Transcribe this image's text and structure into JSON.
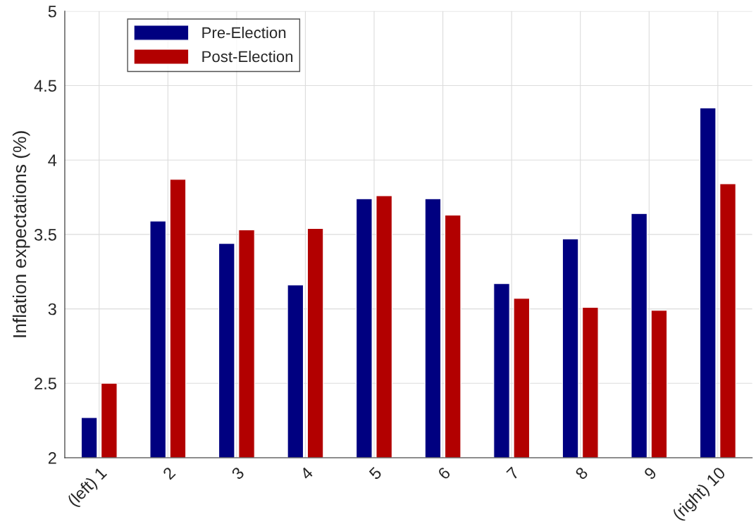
{
  "chart_data": {
    "type": "bar",
    "ylabel": "Inflation expectations (%)",
    "categories": [
      "(left) 1",
      "2",
      "3",
      "4",
      "5",
      "6",
      "7",
      "8",
      "9",
      "(right) 10"
    ],
    "series": [
      {
        "name": "Pre-Election",
        "color": "#000080",
        "values": [
          2.27,
          3.59,
          3.44,
          3.16,
          3.74,
          3.74,
          3.17,
          3.47,
          3.64,
          4.35
        ]
      },
      {
        "name": "Post-Election",
        "color": "#b20000",
        "values": [
          2.5,
          3.87,
          3.53,
          3.54,
          3.76,
          3.63,
          3.07,
          3.01,
          2.99,
          3.84
        ]
      }
    ],
    "ylim": [
      2,
      5
    ],
    "yticks": [
      2,
      2.5,
      3,
      3.5,
      4,
      4.5,
      5
    ],
    "grid": true,
    "legend": "top left"
  }
}
